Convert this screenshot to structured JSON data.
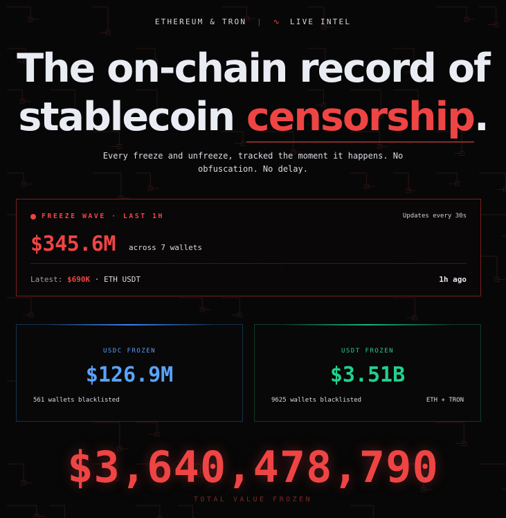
{
  "header": {
    "eyebrow_left": "ETHEREUM & TRON",
    "eyebrow_sep": "|",
    "eyebrow_right": "LIVE INTEL"
  },
  "hero": {
    "line1": "The on-chain record of",
    "line2_prefix": "stablecoin ",
    "line2_accent": "censorship",
    "line2_suffix": ".",
    "subtitle": "Every freeze and unfreeze, tracked the moment it happens. No obfuscation. No delay."
  },
  "freeze_wave": {
    "label": "FREEZE WAVE · LAST 1H",
    "updates": "Updates every 30s",
    "amount": "$345.6M",
    "across": "across 7 wallets",
    "latest_prefix": "Latest: ",
    "latest_amount": "$690K",
    "latest_suffix": " · ETH USDT",
    "ago": "1h ago"
  },
  "usdc": {
    "label": "USDC FROZEN",
    "value": "$126.9M",
    "wallets": "561 wallets blacklisted",
    "chains": ""
  },
  "usdt": {
    "label": "USDT FROZEN",
    "value": "$3.51B",
    "wallets": "9625 wallets blacklisted",
    "chains": "ETH + TRON"
  },
  "total": {
    "value": "$3,640,478,790",
    "label": "TOTAL VALUE FROZEN"
  },
  "colors": {
    "accent_red": "#ef4444",
    "usdc_blue": "#5aa2f8",
    "usdt_green": "#22d08e",
    "background": "#070707"
  }
}
